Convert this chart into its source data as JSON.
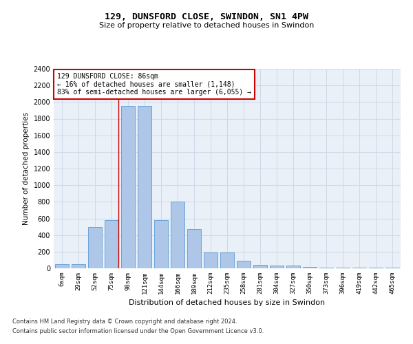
{
  "title1": "129, DUNSFORD CLOSE, SWINDON, SN1 4PW",
  "title2": "Size of property relative to detached houses in Swindon",
  "xlabel": "Distribution of detached houses by size in Swindon",
  "ylabel": "Number of detached properties",
  "categories": [
    "6sqm",
    "29sqm",
    "52sqm",
    "75sqm",
    "98sqm",
    "121sqm",
    "144sqm",
    "166sqm",
    "189sqm",
    "212sqm",
    "235sqm",
    "258sqm",
    "281sqm",
    "304sqm",
    "327sqm",
    "350sqm",
    "373sqm",
    "396sqm",
    "419sqm",
    "442sqm",
    "465sqm"
  ],
  "values": [
    50,
    50,
    500,
    580,
    1950,
    1950,
    580,
    800,
    470,
    190,
    190,
    90,
    40,
    30,
    30,
    20,
    5,
    5,
    5,
    5,
    5
  ],
  "bar_color": "#aec6e8",
  "bar_edge_color": "#5b9bd5",
  "annotation_text": "129 DUNSFORD CLOSE: 86sqm\n← 16% of detached houses are smaller (1,148)\n83% of semi-detached houses are larger (6,055) →",
  "annotation_box_color": "#ffffff",
  "annotation_box_edge_color": "#cc0000",
  "footer1": "Contains HM Land Registry data © Crown copyright and database right 2024.",
  "footer2": "Contains public sector information licensed under the Open Government Licence v3.0.",
  "ylim": [
    0,
    2400
  ],
  "yticks": [
    0,
    200,
    400,
    600,
    800,
    1000,
    1200,
    1400,
    1600,
    1800,
    2000,
    2200,
    2400
  ],
  "grid_color": "#d0d8e8",
  "bg_color": "#eaf0f8"
}
